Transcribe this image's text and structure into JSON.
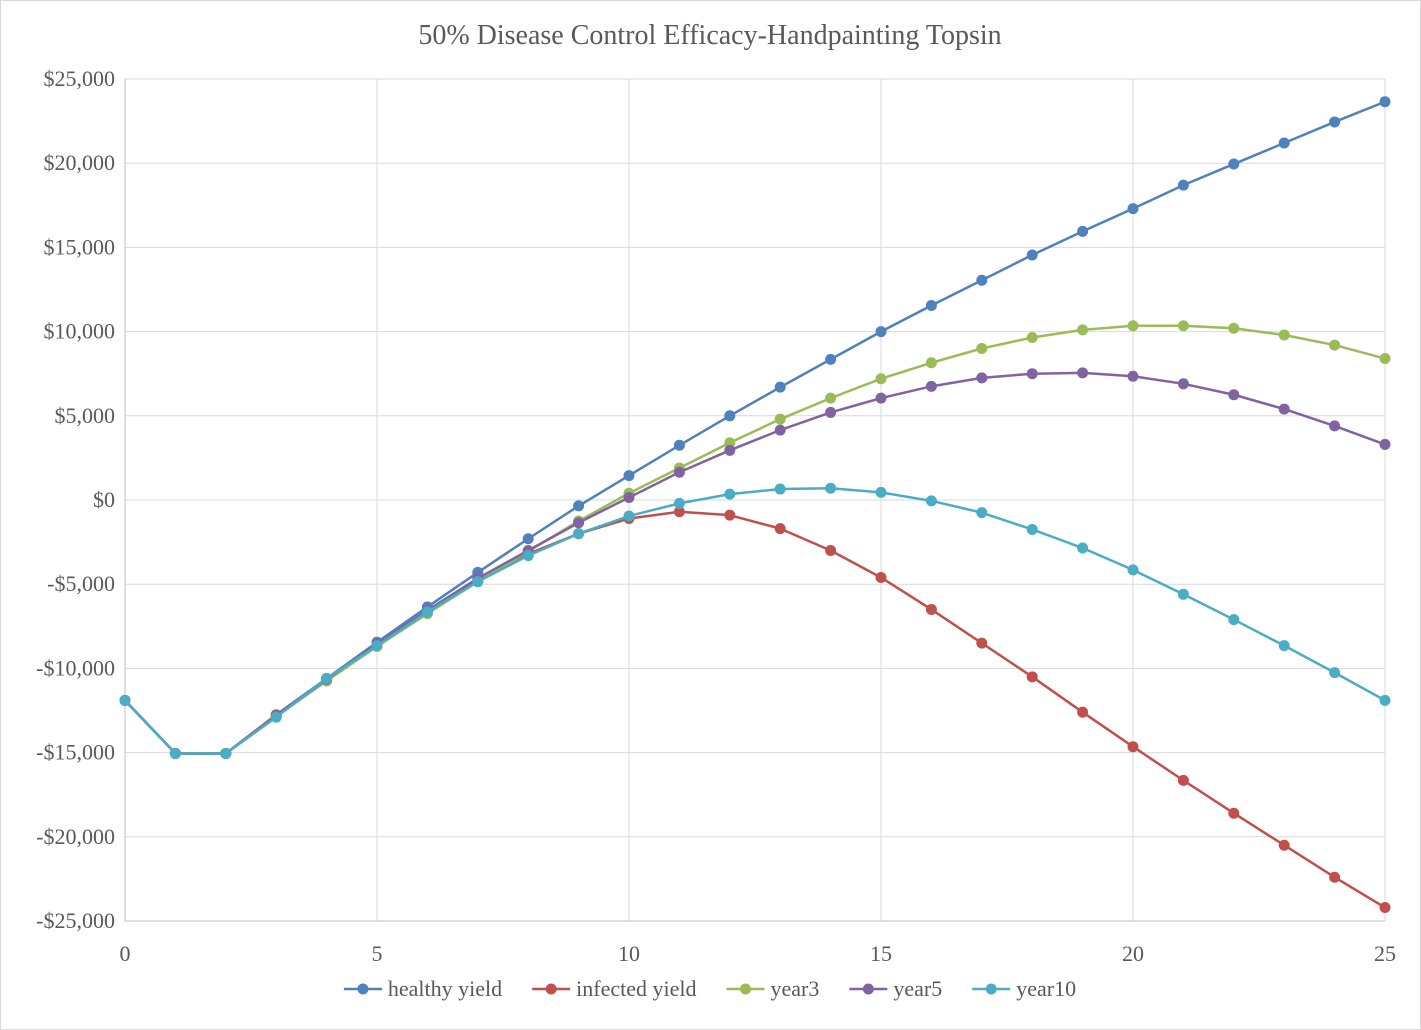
{
  "chart_data": {
    "type": "line",
    "title": "50% Disease Control Efficacy-Handpainting Topsin",
    "xlabel": "",
    "ylabel": "",
    "x": [
      0,
      1,
      2,
      3,
      4,
      5,
      6,
      7,
      8,
      9,
      10,
      11,
      12,
      13,
      14,
      15,
      16,
      17,
      18,
      19,
      20,
      21,
      22,
      23,
      24,
      25
    ],
    "xlim": [
      0,
      25
    ],
    "ylim": [
      -25000,
      25000
    ],
    "x_ticks": [
      0,
      5,
      10,
      15,
      20,
      25
    ],
    "x_tick_labels": [
      "0",
      "5",
      "10",
      "15",
      "20",
      "25"
    ],
    "y_ticks": [
      25000,
      20000,
      15000,
      10000,
      5000,
      0,
      -5000,
      -10000,
      -15000,
      -20000,
      -25000
    ],
    "y_tick_labels": [
      "$25,000",
      "$20,000",
      "$15,000",
      "$10,000",
      "$5,000",
      "$0",
      "-$5,000",
      "-$10,000",
      "-$15,000",
      "-$20,000",
      "-$25,000"
    ],
    "grid": true,
    "legend_position": "bottom",
    "series": [
      {
        "name": "healthy yield",
        "color": "#4f81bd",
        "values": [
          -11900,
          -15050,
          -15050,
          -12750,
          -10600,
          -8450,
          -6350,
          -4300,
          -2300,
          -350,
          1450,
          3250,
          5000,
          6700,
          8350,
          10000,
          11550,
          13050,
          14550,
          15950,
          17300,
          18700,
          19950,
          21200,
          22450,
          23650
        ]
      },
      {
        "name": "infected yield",
        "color": "#c0504d",
        "values": [
          -11900,
          -15050,
          -15050,
          -12800,
          -10700,
          -8600,
          -6600,
          -4800,
          -3200,
          -2000,
          -1100,
          -700,
          -900,
          -1700,
          -3000,
          -4600,
          -6500,
          -8500,
          -10500,
          -12600,
          -14650,
          -16650,
          -18600,
          -20500,
          -22400,
          -24200
        ]
      },
      {
        "name": "year3",
        "color": "#9bbb59",
        "values": [
          -11900,
          -15050,
          -15050,
          -12850,
          -10750,
          -8700,
          -6750,
          -4850,
          -3050,
          -1250,
          400,
          1900,
          3400,
          4800,
          6050,
          7200,
          8150,
          9000,
          9650,
          10100,
          10350,
          10350,
          10200,
          9800,
          9200,
          8400
        ]
      },
      {
        "name": "year5",
        "color": "#8064a2",
        "values": [
          -11900,
          -15050,
          -15050,
          -12850,
          -10650,
          -8550,
          -6550,
          -4650,
          -3000,
          -1350,
          150,
          1650,
          2950,
          4150,
          5200,
          6050,
          6750,
          7250,
          7500,
          7550,
          7350,
          6900,
          6250,
          5400,
          4400,
          3300
        ]
      },
      {
        "name": "year10",
        "color": "#4bacc6",
        "values": [
          -11900,
          -15050,
          -15050,
          -12900,
          -10600,
          -8650,
          -6650,
          -4850,
          -3300,
          -2000,
          -950,
          -200,
          350,
          650,
          700,
          450,
          -50,
          -750,
          -1750,
          -2850,
          -4150,
          -5600,
          -7100,
          -8650,
          -10250,
          -11900
        ]
      }
    ]
  }
}
